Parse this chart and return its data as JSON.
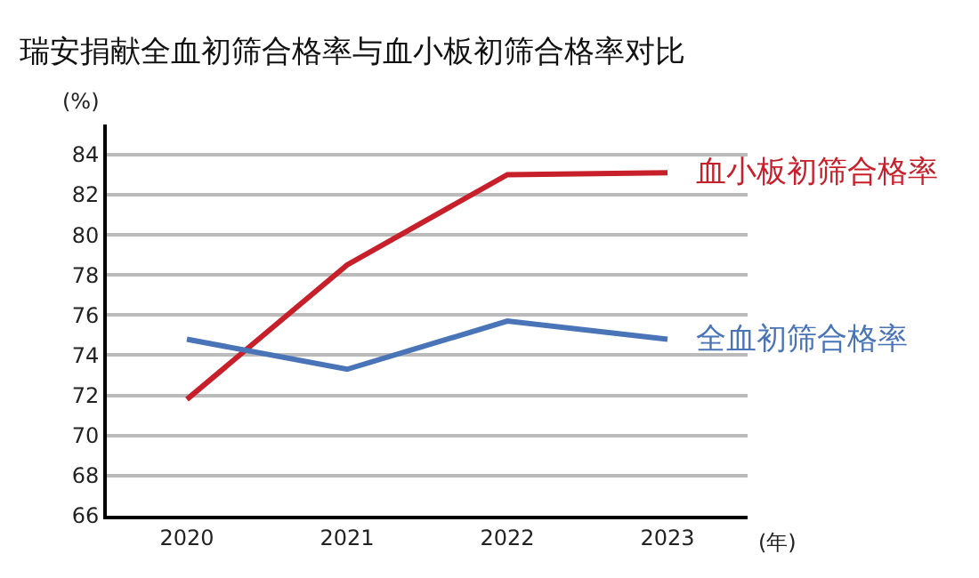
{
  "chart_data": {
    "type": "line",
    "title": "瑞安捐献全血初筛合格率与血小板初筛合格率对比",
    "ylabel": "(%)",
    "xlabel": "(年)",
    "categories": [
      "2020",
      "2021",
      "2022",
      "2023"
    ],
    "series": [
      {
        "name": "血小板初筛合格率",
        "color": "#c8202a",
        "values": [
          71.8,
          78.5,
          83.0,
          83.1
        ]
      },
      {
        "name": "全血初筛合格率",
        "color": "#4a74b8",
        "values": [
          74.8,
          73.3,
          75.7,
          74.8
        ]
      }
    ],
    "ylim": [
      66,
      85.5
    ],
    "yticks": [
      66,
      68,
      70,
      72,
      74,
      76,
      78,
      80,
      82,
      84
    ],
    "grid": "y",
    "legend": false,
    "marker": "none",
    "line_style": "solid"
  }
}
